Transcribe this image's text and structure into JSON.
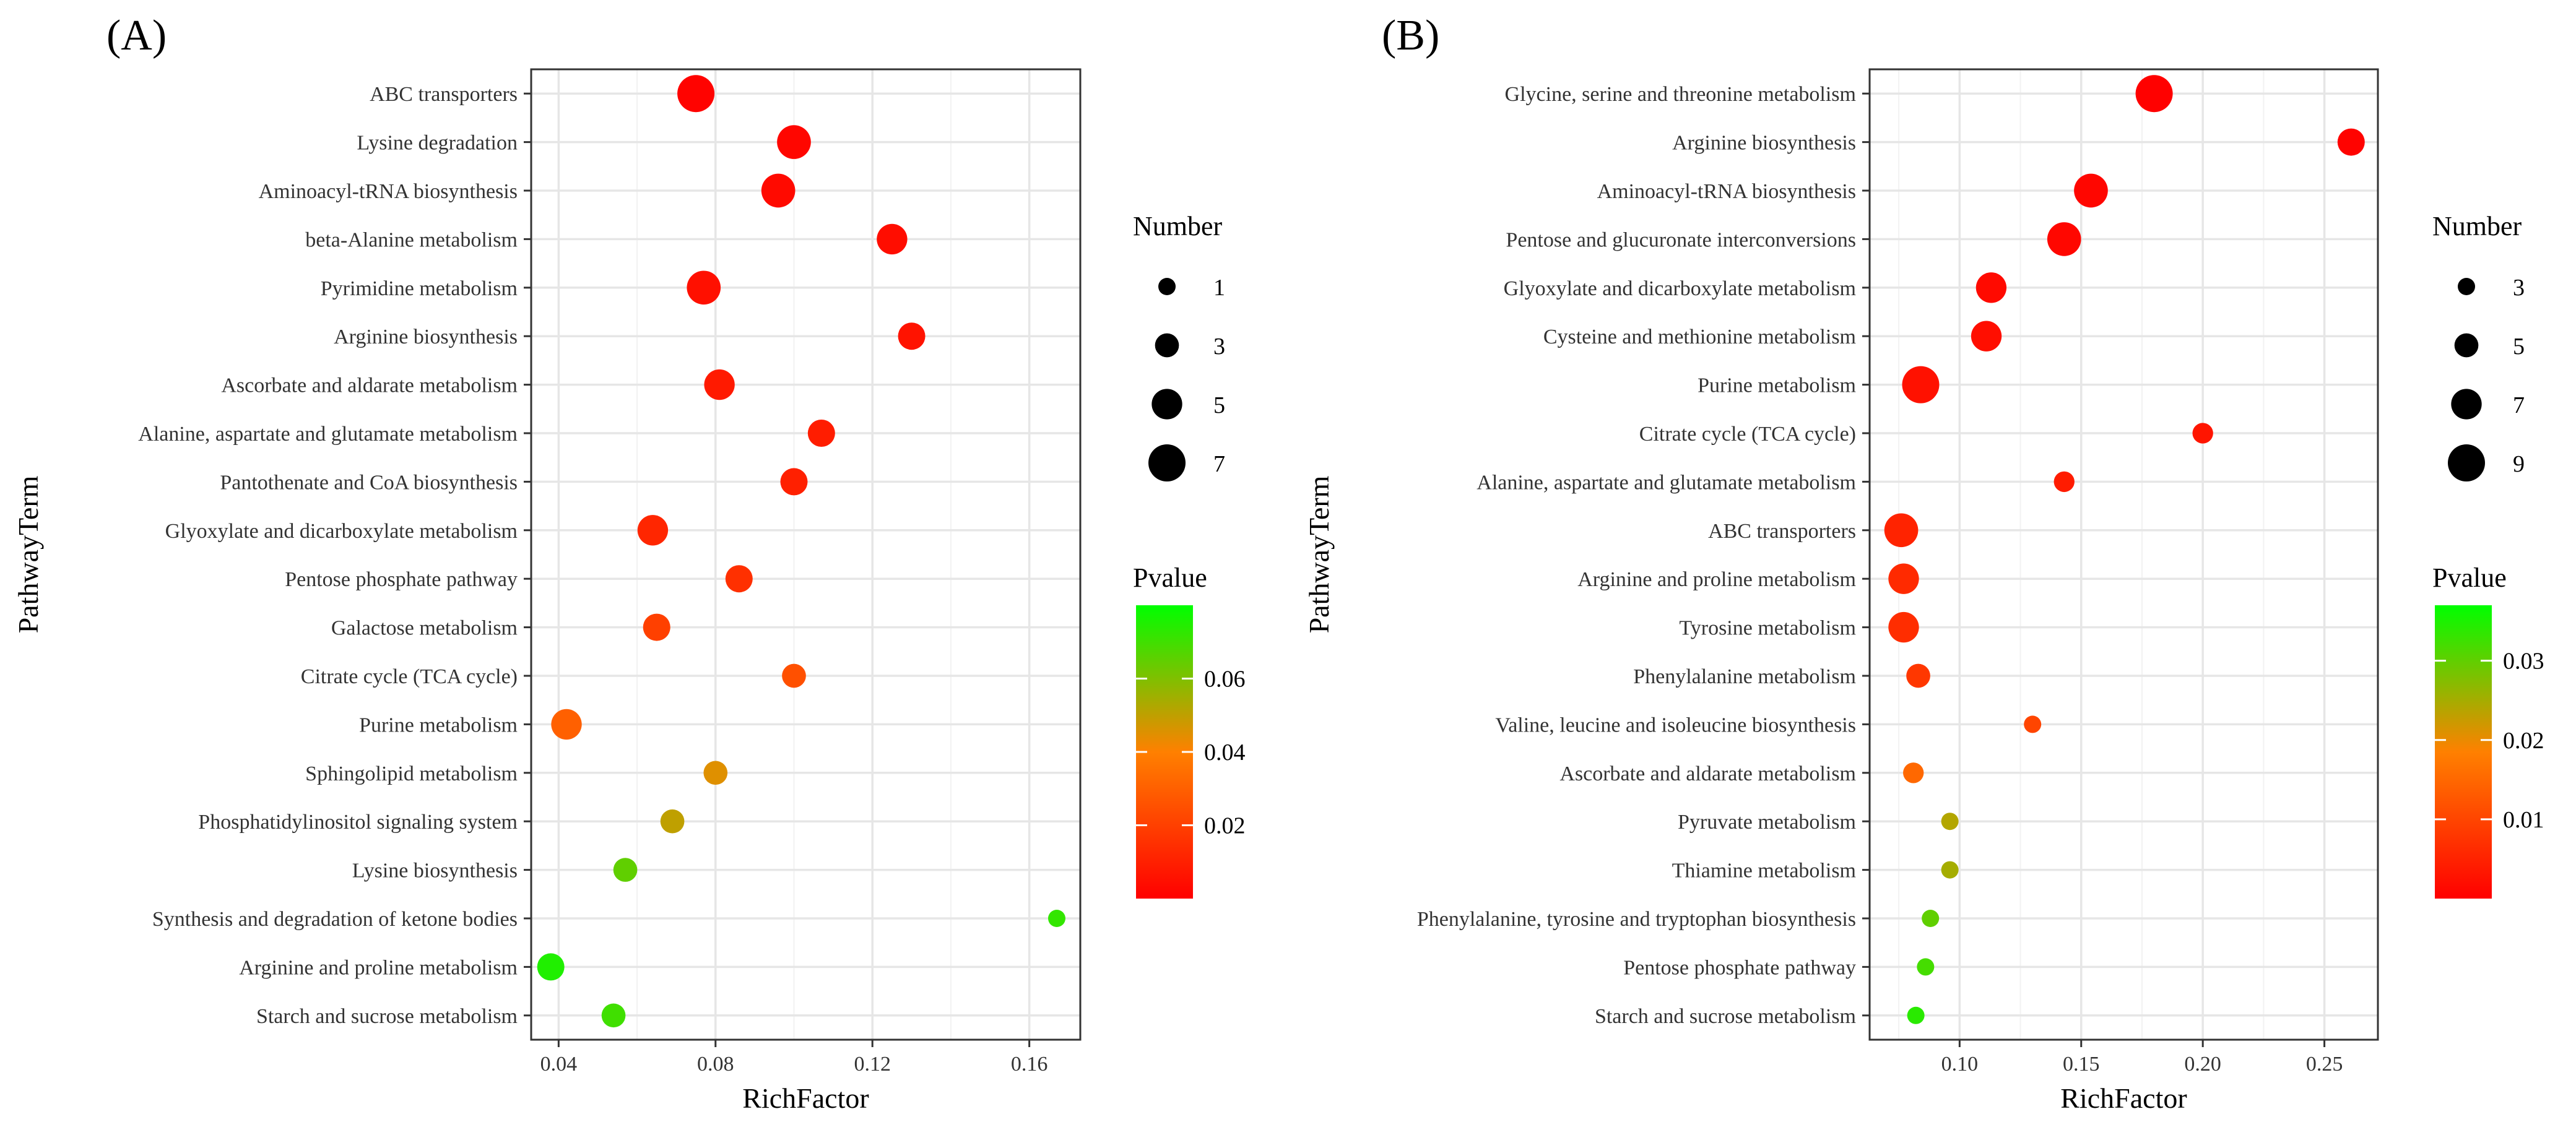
{
  "chart_data": [
    {
      "type": "scatter",
      "panel_label": "(A)",
      "title": "",
      "xlabel": "RichFactor",
      "ylabel": "PathwayTerm",
      "xlim": [
        0.033,
        0.173
      ],
      "x_ticks": [
        0.04,
        0.08,
        0.12,
        0.16
      ],
      "x_tick_labels": [
        "0.04",
        "0.08",
        "0.12",
        "0.16"
      ],
      "grid": true,
      "size_legend": {
        "title": "Number",
        "values": [
          1,
          3,
          5,
          7
        ],
        "labels": [
          "1",
          "3",
          "5",
          "7"
        ]
      },
      "color_legend": {
        "title": "Pvalue",
        "range": [
          0.0,
          0.08
        ],
        "ticks": [
          0.02,
          0.04,
          0.06
        ],
        "tick_labels": [
          "0.02",
          "0.04",
          "0.06"
        ],
        "low_color": "#ff0000",
        "mid_color": "#ff8000",
        "high_color": "#00ff00"
      },
      "points": [
        {
          "term": "ABC transporters",
          "richfactor": 0.075,
          "number": 7,
          "pvalue": 0.001
        },
        {
          "term": "Lysine degradation",
          "richfactor": 0.1,
          "number": 6,
          "pvalue": 0.002
        },
        {
          "term": "Aminoacyl-tRNA biosynthesis",
          "richfactor": 0.096,
          "number": 6,
          "pvalue": 0.003
        },
        {
          "term": "beta-Alanine metabolism",
          "richfactor": 0.125,
          "number": 5,
          "pvalue": 0.004
        },
        {
          "term": "Pyrimidine metabolism",
          "richfactor": 0.077,
          "number": 6,
          "pvalue": 0.005
        },
        {
          "term": "Arginine biosynthesis",
          "richfactor": 0.13,
          "number": 4,
          "pvalue": 0.006
        },
        {
          "term": "Ascorbate and aldarate metabolism",
          "richfactor": 0.081,
          "number": 5,
          "pvalue": 0.008
        },
        {
          "term": "Alanine, aspartate and glutamate metabolism",
          "richfactor": 0.107,
          "number": 4,
          "pvalue": 0.009
        },
        {
          "term": "Pantothenate and CoA biosynthesis",
          "richfactor": 0.1,
          "number": 4,
          "pvalue": 0.01
        },
        {
          "term": "Glyoxylate and dicarboxylate metabolism",
          "richfactor": 0.064,
          "number": 5,
          "pvalue": 0.012
        },
        {
          "term": "Pentose phosphate pathway",
          "richfactor": 0.086,
          "number": 4,
          "pvalue": 0.015
        },
        {
          "term": "Galactose metabolism",
          "richfactor": 0.065,
          "number": 4,
          "pvalue": 0.02
        },
        {
          "term": "Citrate cycle (TCA cycle)",
          "richfactor": 0.1,
          "number": 3,
          "pvalue": 0.025
        },
        {
          "term": "Purine metabolism",
          "richfactor": 0.042,
          "number": 5,
          "pvalue": 0.03
        },
        {
          "term": "Sphingolipid metabolism",
          "richfactor": 0.08,
          "number": 3,
          "pvalue": 0.045
        },
        {
          "term": "Phosphatidylinositol signaling system",
          "richfactor": 0.069,
          "number": 3,
          "pvalue": 0.05
        },
        {
          "term": "Lysine biosynthesis",
          "richfactor": 0.057,
          "number": 3,
          "pvalue": 0.065
        },
        {
          "term": "Synthesis and degradation of ketone bodies",
          "richfactor": 0.167,
          "number": 1,
          "pvalue": 0.072
        },
        {
          "term": "Arginine and proline metabolism",
          "richfactor": 0.038,
          "number": 4,
          "pvalue": 0.075
        },
        {
          "term": "Starch and sucrose metabolism",
          "richfactor": 0.054,
          "number": 3,
          "pvalue": 0.07
        }
      ]
    },
    {
      "type": "scatter",
      "panel_label": "(B)",
      "title": "",
      "xlabel": "RichFactor",
      "ylabel": "PathwayTerm",
      "xlim": [
        0.063,
        0.272
      ],
      "x_ticks": [
        0.1,
        0.15,
        0.2,
        0.25
      ],
      "x_tick_labels": [
        "0.10",
        "0.15",
        "0.20",
        "0.25"
      ],
      "grid": true,
      "size_legend": {
        "title": "Number",
        "values": [
          3,
          5,
          7,
          9
        ],
        "labels": [
          "3",
          "5",
          "7",
          "9"
        ]
      },
      "color_legend": {
        "title": "Pvalue",
        "range": [
          0.0,
          0.037
        ],
        "ticks": [
          0.01,
          0.02,
          0.03
        ],
        "tick_labels": [
          "0.01",
          "0.02",
          "0.03"
        ],
        "low_color": "#ff0000",
        "mid_color": "#ff8000",
        "high_color": "#00ff00"
      },
      "points": [
        {
          "term": "Glycine, serine and threonine metabolism",
          "richfactor": 0.18,
          "number": 9,
          "pvalue": 0.0002
        },
        {
          "term": "Arginine biosynthesis",
          "richfactor": 0.261,
          "number": 6,
          "pvalue": 0.0005
        },
        {
          "term": "Aminoacyl-tRNA biosynthesis",
          "richfactor": 0.154,
          "number": 8,
          "pvalue": 0.0008
        },
        {
          "term": "Pentose and glucuronate interconversions",
          "richfactor": 0.143,
          "number": 8,
          "pvalue": 0.001
        },
        {
          "term": "Glyoxylate and dicarboxylate metabolism",
          "richfactor": 0.113,
          "number": 7,
          "pvalue": 0.0015
        },
        {
          "term": "Cysteine and methionine metabolism",
          "richfactor": 0.111,
          "number": 7,
          "pvalue": 0.002
        },
        {
          "term": "Purine metabolism",
          "richfactor": 0.084,
          "number": 9,
          "pvalue": 0.0025
        },
        {
          "term": "Citrate cycle (TCA cycle)",
          "richfactor": 0.2,
          "number": 4,
          "pvalue": 0.003
        },
        {
          "term": "Alanine, aspartate and glutamate metabolism",
          "richfactor": 0.143,
          "number": 4,
          "pvalue": 0.004
        },
        {
          "term": "ABC transporters",
          "richfactor": 0.076,
          "number": 8,
          "pvalue": 0.005
        },
        {
          "term": "Arginine and proline metabolism",
          "richfactor": 0.077,
          "number": 7,
          "pvalue": 0.006
        },
        {
          "term": "Tyrosine metabolism",
          "richfactor": 0.077,
          "number": 7,
          "pvalue": 0.0065
        },
        {
          "term": "Phenylalanine metabolism",
          "richfactor": 0.083,
          "number": 5,
          "pvalue": 0.008
        },
        {
          "term": "Valine, leucine and isoleucine biosynthesis",
          "richfactor": 0.13,
          "number": 3,
          "pvalue": 0.01
        },
        {
          "term": "Ascorbate and aldarate metabolism",
          "richfactor": 0.081,
          "number": 4,
          "pvalue": 0.015
        },
        {
          "term": "Pyruvate metabolism",
          "richfactor": 0.096,
          "number": 3,
          "pvalue": 0.024
        },
        {
          "term": "Thiamine metabolism",
          "richfactor": 0.096,
          "number": 3,
          "pvalue": 0.025
        },
        {
          "term": "Phenylalanine, tyrosine and tryptophan biosynthesis",
          "richfactor": 0.088,
          "number": 3,
          "pvalue": 0.03
        },
        {
          "term": "Pentose phosphate pathway",
          "richfactor": 0.086,
          "number": 3,
          "pvalue": 0.032
        },
        {
          "term": "Starch and sucrose metabolism",
          "richfactor": 0.082,
          "number": 3,
          "pvalue": 0.034
        }
      ]
    }
  ]
}
